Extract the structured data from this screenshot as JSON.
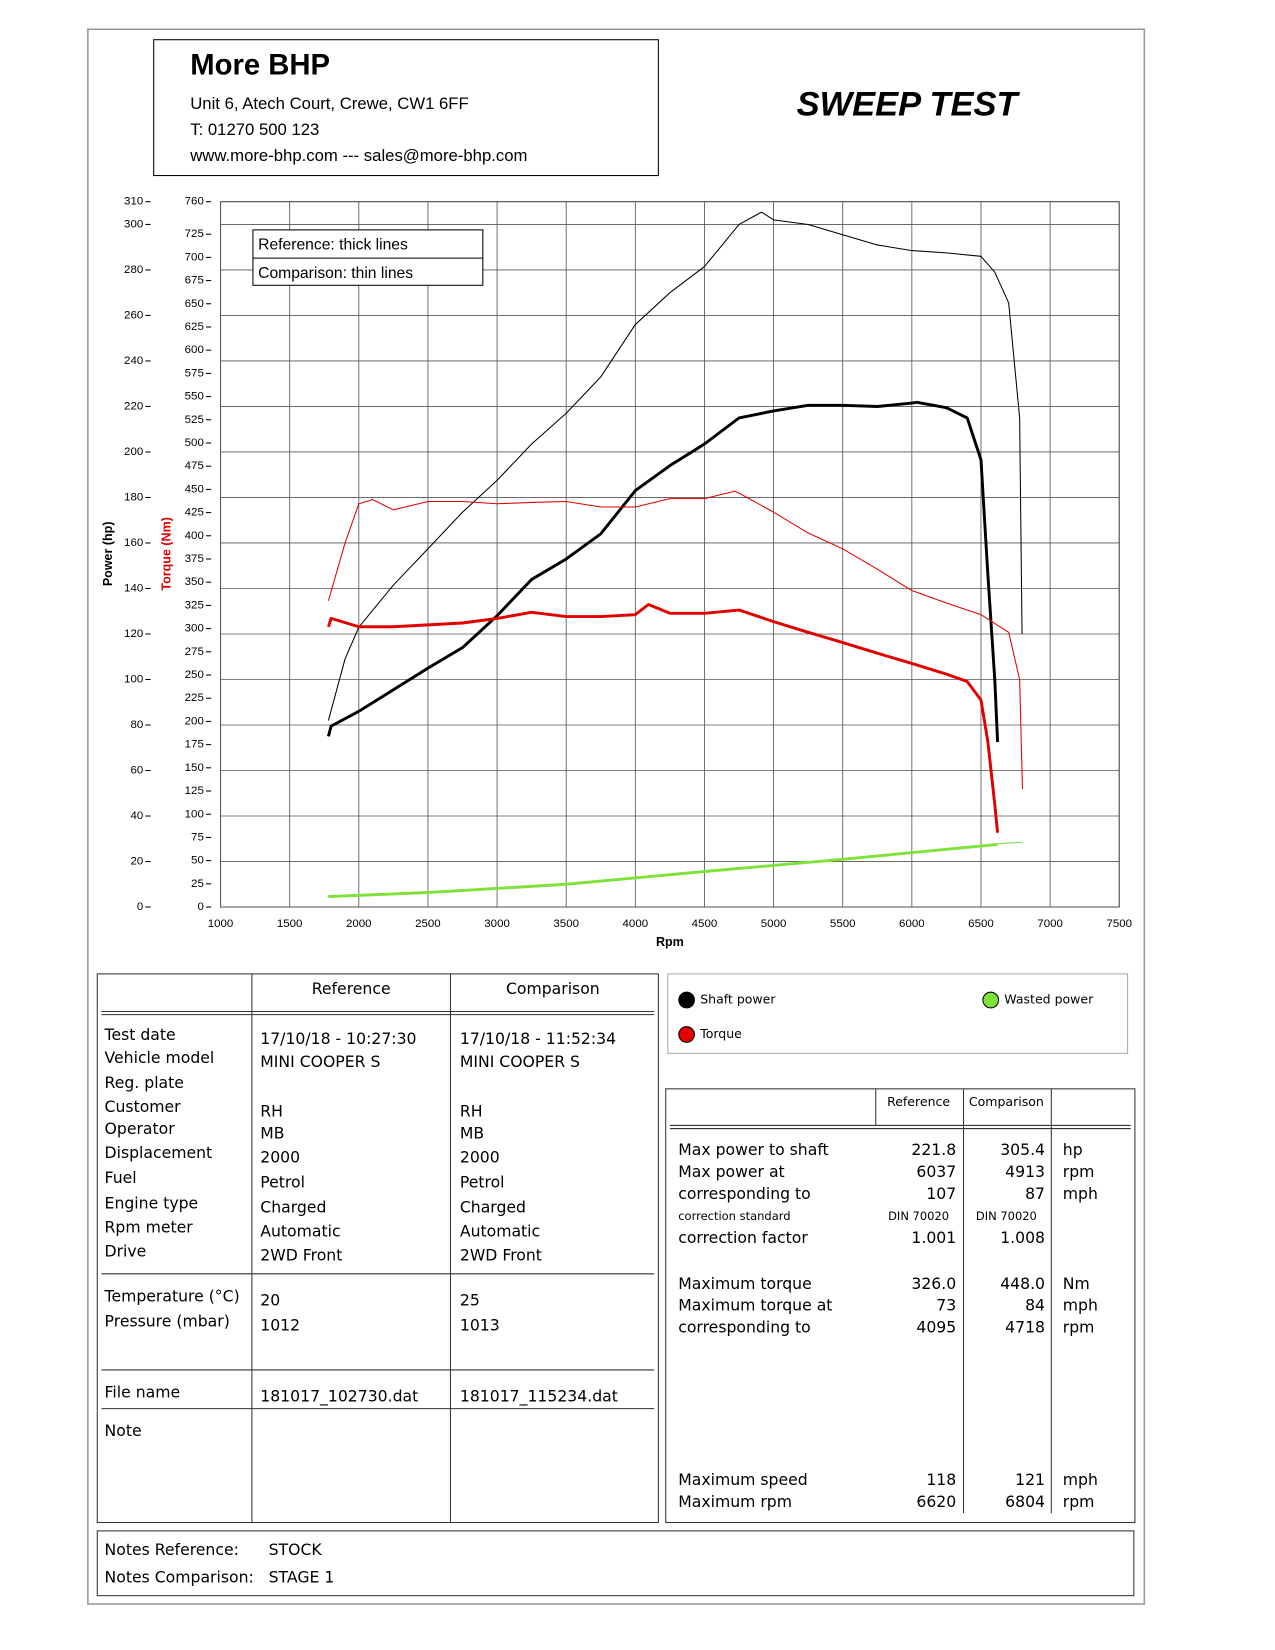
{
  "header": {
    "company": "More BHP",
    "address": "Unit 6, Atech Court, Crewe, CW1 6FF",
    "phone": "T: 01270 500 123",
    "web": "www.more-bhp.com --- sales@more-bhp.com",
    "report_title": "SWEEP TEST"
  },
  "chart_data": {
    "type": "line",
    "x_label": "Rpm",
    "y_label": "Power (hp)",
    "y2_label": "Torque (Nm)",
    "y2_label_color": "#e00000",
    "line_key": [
      "Reference: thick lines",
      "Comparison: thin lines"
    ],
    "xlim": [
      1000,
      7500
    ],
    "xticks": [
      1000,
      1500,
      2000,
      2500,
      3000,
      3500,
      4000,
      4500,
      5000,
      5500,
      6000,
      6500,
      7000,
      7500
    ],
    "ylim": [
      0,
      310
    ],
    "yticks": [
      0,
      20,
      40,
      60,
      80,
      100,
      120,
      140,
      160,
      180,
      200,
      220,
      240,
      260,
      280,
      300,
      310
    ],
    "y2lim": [
      0,
      760
    ],
    "y2ticks": [
      0,
      25,
      50,
      75,
      100,
      125,
      150,
      175,
      200,
      225,
      250,
      275,
      300,
      325,
      350,
      375,
      400,
      425,
      450,
      475,
      500,
      525,
      550,
      575,
      600,
      625,
      650,
      675,
      700,
      725,
      760
    ],
    "grid": true,
    "series": [
      {
        "name": "Shaft power",
        "color": "#000000",
        "line": "thick",
        "x": [
          1780,
          1800,
          2000,
          2250,
          2500,
          2750,
          3000,
          3250,
          3500,
          3750,
          4000,
          4250,
          4500,
          4750,
          5000,
          5250,
          5500,
          5750,
          6000,
          6037,
          6250,
          6400,
          6500,
          6550,
          6600,
          6620
        ],
        "values": [
          75,
          79.5,
          86,
          95.5,
          105,
          114,
          128,
          144,
          153,
          164,
          183,
          194,
          203.5,
          215,
          218,
          220.5,
          220.5,
          220,
          221.5,
          221.8,
          219.5,
          215,
          196.5,
          146,
          100,
          72.5
        ]
      },
      {
        "name": "Shaft power",
        "color": "#000000",
        "line": "thin",
        "x": [
          1780,
          1900,
          2000,
          2250,
          2500,
          2750,
          3000,
          3250,
          3500,
          3750,
          4000,
          4250,
          4500,
          4750,
          4913,
          5000,
          5250,
          5500,
          5750,
          6000,
          6250,
          6500,
          6600,
          6700,
          6780,
          6797
        ],
        "values": [
          82,
          109,
          123,
          141.5,
          157.5,
          173.5,
          187.5,
          203.5,
          217,
          233,
          256,
          270,
          281.5,
          300,
          305.4,
          302,
          300,
          295.5,
          291,
          288.5,
          287.5,
          286,
          279,
          265.5,
          215,
          120
        ]
      },
      {
        "name": "Torque",
        "color": "#e00000",
        "line": "thick",
        "axis": "y2",
        "x": [
          1780,
          1800,
          2000,
          2250,
          2500,
          2750,
          3000,
          3250,
          3500,
          3750,
          4000,
          4095,
          4250,
          4500,
          4750,
          5000,
          5250,
          5500,
          5750,
          6000,
          6250,
          6400,
          6500,
          6550,
          6600,
          6620
        ],
        "values": [
          302,
          311,
          302,
          302,
          304,
          306,
          311,
          317.5,
          313,
          313,
          315,
          326,
          316.5,
          316.5,
          320,
          307.5,
          296,
          285,
          273.5,
          262.5,
          251,
          243,
          223,
          178,
          110.5,
          80
        ]
      },
      {
        "name": "Torque",
        "color": "#e00000",
        "line": "thin",
        "axis": "y2",
        "x": [
          1780,
          1900,
          2000,
          2100,
          2250,
          2500,
          2750,
          3000,
          3250,
          3500,
          3750,
          4000,
          4250,
          4500,
          4718,
          4750,
          5000,
          5250,
          5500,
          5750,
          6000,
          6250,
          6500,
          6700,
          6780,
          6800
        ],
        "values": [
          330,
          392,
          434.5,
          439,
          428,
          437,
          437,
          434.5,
          436,
          437,
          431,
          431,
          440,
          440,
          448,
          446,
          425.5,
          403,
          386,
          364,
          341,
          327.5,
          315,
          296,
          245,
          127
        ]
      },
      {
        "name": "Wasted power",
        "color": "#7ee23a",
        "line": "thick",
        "x": [
          1780,
          2500,
          3500,
          4500,
          5500,
          6620
        ],
        "values": [
          4.6,
          6.4,
          10,
          15.6,
          21,
          27.5
        ]
      },
      {
        "name": "Wasted power",
        "color": "#7ee23a",
        "line": "thin",
        "x": [
          1780,
          2500,
          3500,
          4500,
          5500,
          6620,
          6800
        ],
        "values": [
          4.7,
          6.5,
          10.1,
          15.8,
          21.3,
          27.8,
          28.5
        ]
      }
    ]
  },
  "left_table": {
    "headers": [
      "Reference",
      "Comparison"
    ],
    "groups": [
      [
        [
          "Test date",
          "17/10/18 - 10:27:30",
          "17/10/18 - 11:52:34"
        ],
        [
          "Vehicle model",
          "MINI COOPER S",
          "MINI COOPER S"
        ],
        [
          "Reg. plate"
        ],
        [
          "Customer",
          "RH",
          "RH"
        ],
        [
          "Operator",
          "MB",
          "MB"
        ],
        [
          "Displacement",
          "2000",
          "2000"
        ],
        [
          "Fuel",
          "Petrol",
          "Petrol"
        ],
        [
          "Engine type",
          "Charged",
          "Charged"
        ],
        [
          "Rpm meter",
          "Automatic",
          "Automatic"
        ],
        [
          "Drive",
          "2WD Front",
          "2WD Front"
        ]
      ],
      [
        [
          "Temperature (°C)",
          "20",
          "25"
        ],
        [
          "Pressure (mbar)",
          "1012",
          "1013"
        ]
      ],
      [
        [
          "File name",
          "181017_102730.dat",
          "181017_115234.dat"
        ]
      ]
    ],
    "note": "Note"
  },
  "right_table": {
    "headers": [
      "Reference",
      "Comparison"
    ],
    "groups": [
      [
        [
          "Max power to shaft",
          "221.8",
          "305.4",
          "hp"
        ],
        [
          "Max power at",
          "6037",
          "4913",
          "rpm"
        ],
        [
          "corresponding to",
          "107",
          "87",
          "mph"
        ],
        [
          "correction standard",
          "DIN 70020",
          "DIN 70020"
        ],
        [
          "correction factor",
          "1.001",
          "1.008"
        ]
      ],
      [
        [
          "Maximum torque",
          "326.0",
          "448.0",
          "Nm"
        ],
        [
          "Maximum torque at",
          "73",
          "84",
          "mph"
        ],
        [
          "corresponding to",
          "4095",
          "4718",
          "rpm"
        ]
      ],
      [
        [
          "Maximum speed",
          "118",
          "121",
          "mph"
        ],
        [
          "Maximum rpm",
          "6620",
          "6804",
          "rpm"
        ]
      ]
    ]
  },
  "notes": [
    [
      "Notes Reference:",
      "STOCK"
    ],
    [
      "Notes Comparison:",
      "STAGE 1"
    ]
  ]
}
